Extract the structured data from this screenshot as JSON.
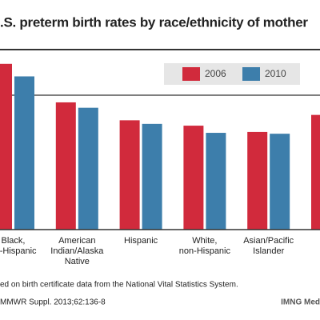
{
  "chart_data": {
    "type": "bar",
    "title": ".S. preterm birth rates by race/ethnicity of mother",
    "categories": [
      [
        "Black,",
        "on-Hispanic"
      ],
      [
        "American",
        "Indian/Alaska",
        "Native"
      ],
      [
        "Hispanic"
      ],
      [
        "White,",
        "non-Hispanic"
      ],
      [
        "Asian/Pacific",
        "Islander"
      ],
      null
    ],
    "series": [
      {
        "name": "2006",
        "color": "#d12a3c",
        "values": [
          18.5,
          14.2,
          12.2,
          11.6,
          10.9,
          12.8
        ]
      },
      {
        "name": "2010",
        "color": "#3d7eab",
        "values": [
          17.1,
          13.6,
          11.8,
          10.8,
          10.7,
          null
        ]
      }
    ],
    "ylim": [
      0,
      20
    ],
    "grid_lines": [
      15
    ],
    "legend": "top-right",
    "footnotes": [
      "ed on birth certificate data from the National Vital Statistics System.",
      "MMWR Suppl. 2013;62:136-8"
    ],
    "credit": "IMNG Med"
  }
}
